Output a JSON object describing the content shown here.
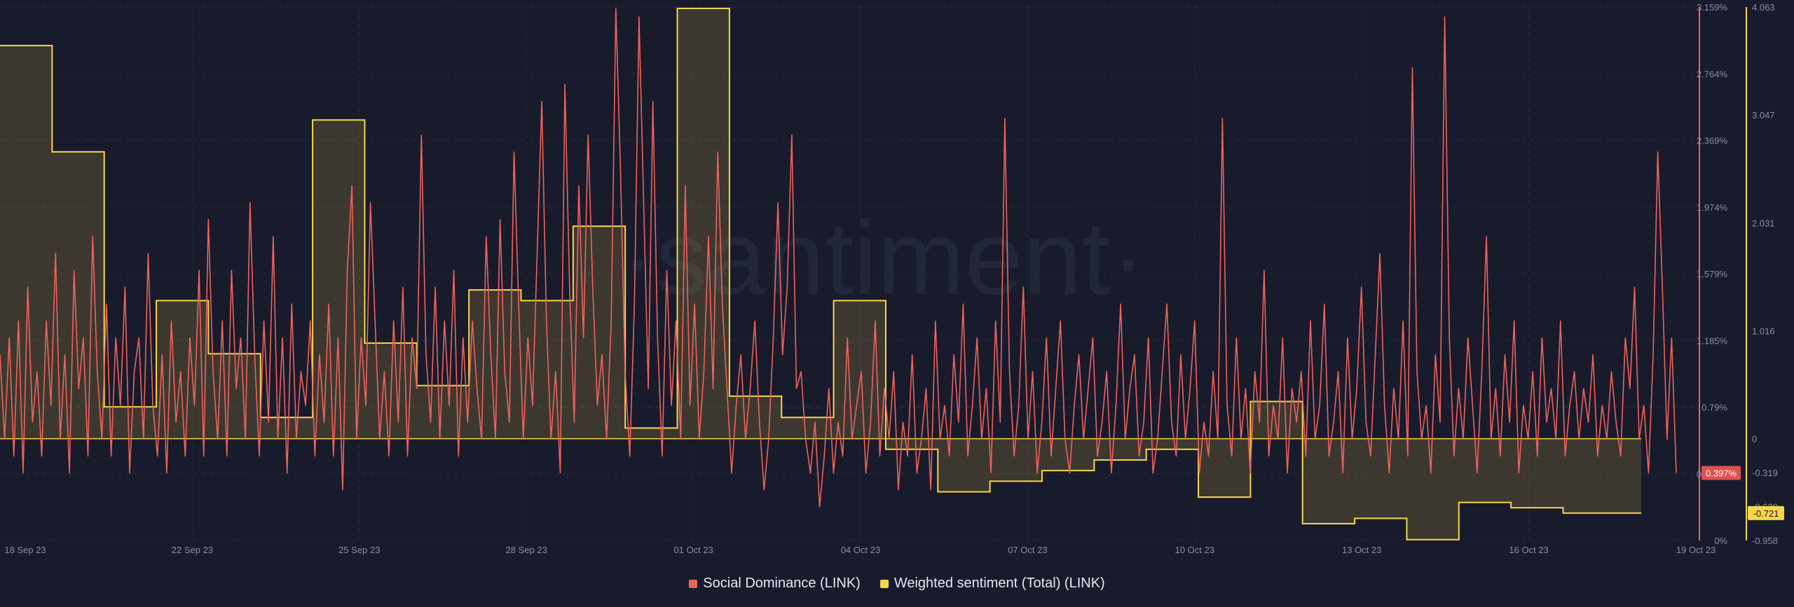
{
  "watermark": "·santiment·",
  "legend": [
    {
      "label": "Social Dominance (LINK)",
      "color": "#f0625a"
    },
    {
      "label": "Weighted sentiment (Total) (LINK)",
      "color": "#f7d648"
    }
  ],
  "chart_data": {
    "type": "line",
    "x_ticks": [
      "18 Sep 23",
      "22 Sep 23",
      "25 Sep 23",
      "28 Sep 23",
      "01 Oct 23",
      "04 Oct 23",
      "07 Oct 23",
      "10 Oct 23",
      "13 Oct 23",
      "16 Oct 23",
      "19 Oct 23"
    ],
    "y_left_ticks": [
      "3.159%",
      "2.764%",
      "2.369%",
      "1.974%",
      "1.579%",
      "1.185%",
      "0.79%",
      "0.395%",
      "0%"
    ],
    "y_left_range": [
      0,
      3.159
    ],
    "y_right_ticks": [
      "4.063",
      "3.047",
      "2.031",
      "1.016",
      "0",
      "-0.319",
      "-0.639",
      "-0.958"
    ],
    "y_right_range": [
      -0.958,
      4.063
    ],
    "badges": {
      "social_dominance": "0.397%",
      "weighted_sentiment": "-0.721"
    },
    "series": [
      {
        "name": "Social Dominance (LINK)",
        "color": "#f0625a",
        "axis": "left",
        "type": "line",
        "values": [
          1.1,
          0.6,
          1.2,
          0.5,
          1.3,
          0.4,
          1.5,
          0.7,
          1.0,
          0.5,
          1.3,
          0.8,
          1.7,
          0.6,
          1.1,
          0.4,
          1.6,
          0.9,
          1.2,
          0.5,
          1.8,
          1.0,
          0.6,
          1.4,
          0.5,
          1.2,
          0.8,
          1.5,
          0.4,
          1.0,
          1.2,
          0.6,
          1.7,
          0.8,
          0.5,
          1.1,
          0.4,
          1.3,
          0.7,
          1.0,
          0.5,
          1.2,
          0.8,
          1.6,
          0.5,
          1.9,
          1.0,
          0.6,
          1.3,
          0.5,
          1.6,
          0.9,
          1.2,
          0.6,
          2.0,
          1.1,
          0.5,
          1.3,
          0.7,
          1.8,
          0.6,
          1.2,
          0.4,
          1.4,
          0.6,
          1.0,
          0.8,
          1.3,
          0.5,
          1.1,
          0.7,
          1.4,
          0.5,
          1.2,
          0.3,
          1.6,
          2.1,
          0.6,
          1.2,
          0.8,
          2.0,
          1.3,
          0.6,
          1.0,
          0.5,
          1.3,
          0.7,
          1.5,
          0.5,
          1.2,
          0.9,
          2.4,
          1.1,
          0.7,
          1.5,
          0.6,
          1.3,
          0.8,
          1.6,
          0.5,
          1.2,
          0.7,
          1.3,
          0.9,
          0.6,
          1.8,
          1.1,
          0.6,
          1.9,
          1.0,
          0.7,
          2.3,
          1.4,
          0.6,
          1.2,
          0.8,
          1.7,
          2.6,
          1.3,
          0.6,
          1.0,
          0.4,
          2.7,
          1.5,
          0.7,
          2.1,
          1.2,
          2.4,
          1.5,
          0.8,
          1.1,
          0.6,
          1.3,
          3.15,
          2.2,
          1.0,
          0.5,
          1.4,
          3.1,
          2.0,
          0.9,
          2.6,
          1.2,
          0.5,
          1.6,
          0.8,
          1.3,
          0.6,
          2.1,
          0.8,
          1.4,
          0.6,
          1.0,
          1.8,
          0.9,
          2.3,
          1.4,
          0.9,
          0.4,
          0.8,
          1.1,
          0.6,
          0.9,
          1.3,
          0.7,
          0.3,
          0.6,
          1.2,
          2.0,
          1.1,
          1.5,
          2.4,
          0.9,
          1.0,
          0.6,
          0.4,
          0.7,
          0.2,
          0.5,
          0.9,
          0.4,
          0.7,
          0.5,
          1.2,
          0.6,
          0.8,
          1.0,
          0.4,
          0.7,
          1.3,
          0.5,
          0.9,
          0.6,
          1.0,
          0.3,
          0.7,
          0.5,
          1.1,
          0.4,
          0.6,
          0.9,
          0.3,
          1.3,
          0.6,
          0.8,
          0.5,
          1.1,
          0.7,
          1.4,
          0.5,
          0.8,
          1.2,
          0.6,
          0.9,
          0.4,
          1.3,
          0.7,
          2.5,
          1.0,
          0.5,
          0.8,
          1.5,
          0.6,
          1.0,
          0.4,
          0.7,
          1.2,
          0.5,
          0.9,
          1.3,
          0.6,
          0.4,
          0.8,
          1.1,
          0.6,
          0.9,
          1.2,
          0.5,
          0.7,
          1.0,
          0.4,
          0.8,
          1.4,
          0.6,
          0.9,
          1.1,
          0.5,
          0.7,
          1.2,
          0.4,
          0.6,
          1.0,
          1.4,
          0.7,
          0.5,
          1.1,
          0.6,
          0.9,
          1.3,
          0.4,
          0.7,
          0.5,
          1.0,
          0.6,
          2.5,
          0.8,
          0.5,
          1.2,
          0.6,
          0.9,
          0.4,
          1.0,
          0.7,
          1.6,
          0.5,
          0.8,
          0.6,
          1.2,
          0.4,
          0.9,
          0.7,
          1.0,
          0.5,
          1.3,
          0.6,
          0.8,
          1.4,
          0.5,
          0.7,
          1.0,
          0.4,
          1.2,
          0.6,
          0.9,
          1.5,
          0.7,
          0.5,
          1.1,
          1.7,
          0.8,
          0.4,
          0.9,
          0.6,
          1.3,
          0.5,
          2.8,
          1.0,
          0.6,
          0.8,
          0.4,
          1.1,
          0.7,
          3.1,
          1.2,
          0.5,
          0.9,
          0.6,
          1.2,
          0.8,
          0.4,
          1.0,
          1.8,
          0.6,
          0.9,
          0.5,
          1.1,
          0.7,
          1.3,
          0.4,
          0.8,
          0.6,
          1.0,
          0.5,
          1.2,
          0.7,
          0.9,
          0.6,
          1.3,
          0.5,
          0.8,
          1.0,
          0.6,
          0.9,
          0.7,
          1.1,
          0.5,
          0.8,
          0.6,
          1.0,
          0.7,
          0.5,
          1.2,
          0.9,
          1.5,
          0.6,
          0.8,
          0.4,
          1.1,
          2.3,
          1.5,
          0.6,
          1.2,
          0.4
        ]
      },
      {
        "name": "Weighted sentiment (Total) (LINK)",
        "color": "#f7d648",
        "axis": "right",
        "type": "step-area",
        "values": [
          3.7,
          3.7,
          2.7,
          2.7,
          0.3,
          0.3,
          1.3,
          1.3,
          0.8,
          0.8,
          0.2,
          0.2,
          3.0,
          3.0,
          0.9,
          0.9,
          0.5,
          0.5,
          1.4,
          1.4,
          1.3,
          1.3,
          2.0,
          2.0,
          0.1,
          0.1,
          4.05,
          4.05,
          0.4,
          0.4,
          0.2,
          0.2,
          1.3,
          1.3,
          -0.1,
          -0.1,
          -0.5,
          -0.5,
          -0.4,
          -0.4,
          -0.3,
          -0.3,
          -0.2,
          -0.2,
          -0.1,
          -0.1,
          -0.55,
          -0.55,
          0.35,
          0.35,
          -0.8,
          -0.8,
          -0.75,
          -0.75,
          -0.95,
          -0.95,
          -0.6,
          -0.6,
          -0.65,
          -0.65,
          -0.7,
          -0.7,
          -0.7
        ]
      }
    ]
  }
}
